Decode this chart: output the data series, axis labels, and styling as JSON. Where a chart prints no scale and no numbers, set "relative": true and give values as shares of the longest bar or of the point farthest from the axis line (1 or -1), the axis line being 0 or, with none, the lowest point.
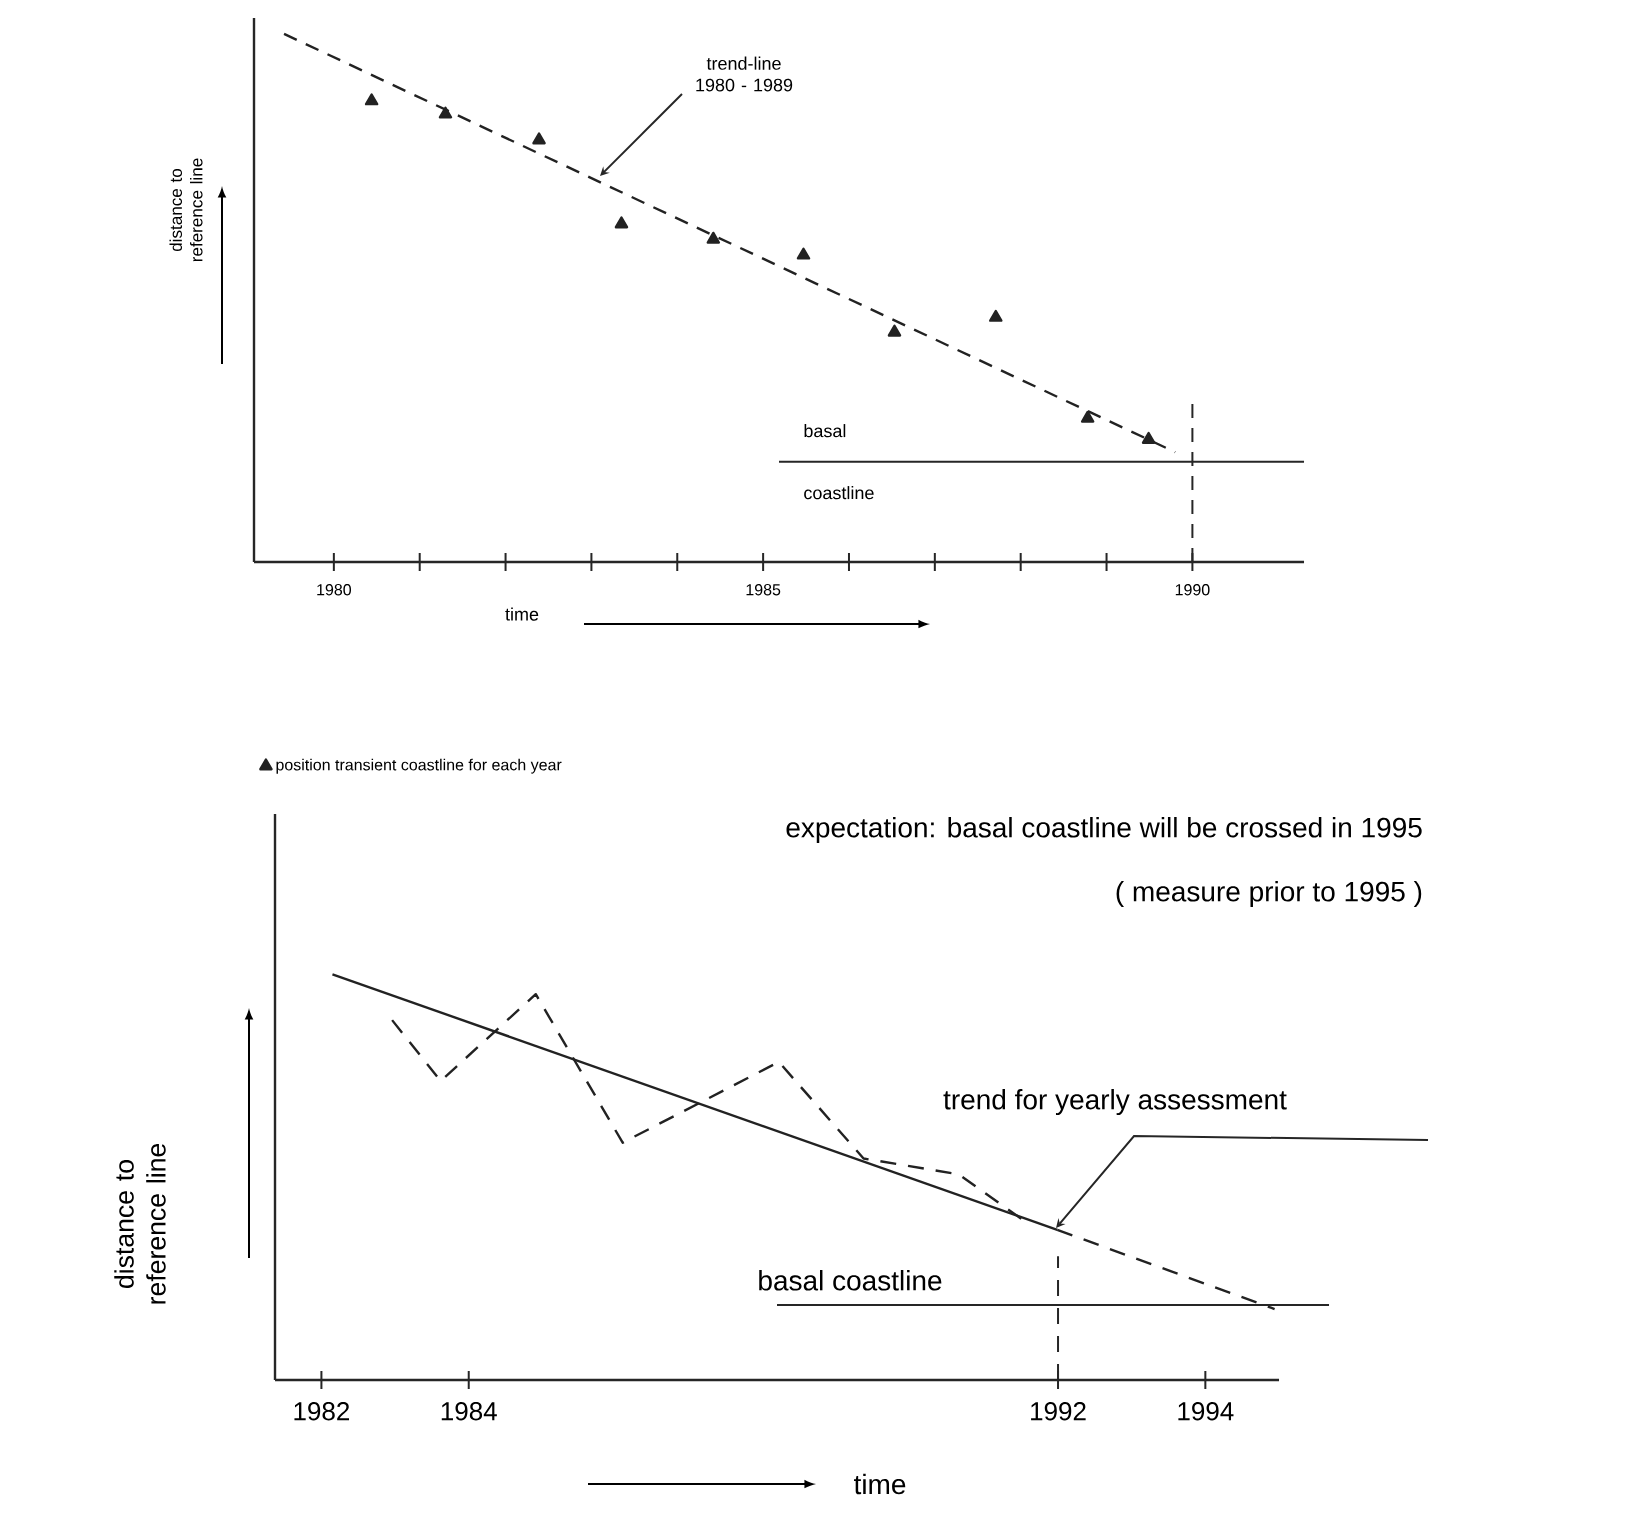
{
  "chart_data": [
    {
      "type": "scatter",
      "relative": true,
      "xlabel": "time",
      "ylabel": "distance to reference line",
      "legend": "bottom left",
      "xlim": [
        1979.07,
        1991.3
      ],
      "xticks": [
        1980,
        {
          "value": 1981,
          "label": null
        },
        {
          "value": 1982,
          "label": null
        },
        {
          "value": 1983,
          "label": null
        },
        {
          "value": 1984,
          "label": null
        },
        1985,
        {
          "value": 1986,
          "label": null
        },
        {
          "value": 1987,
          "label": null
        },
        {
          "value": 1988,
          "label": null
        },
        {
          "value": 1989,
          "label": null
        },
        1990
      ],
      "series": [
        {
          "name": "position transient coastline for each year",
          "color": "#222222",
          "marker": "triangle",
          "x": [
            1980.44,
            1981.3,
            1982.39,
            1983.35,
            1984.42,
            1985.47,
            1986.53,
            1987.71,
            1988.78,
            1989.49
          ],
          "values": [
            0.873,
            0.848,
            0.799,
            0.64,
            0.611,
            0.581,
            0.435,
            0.463,
            0.272,
            0.232
          ]
        },
        {
          "type": "line",
          "color": "#222222",
          "line_style": "dashed",
          "x": [
            1979.42,
            1989.8
          ],
          "values": [
            1,
            0.208
          ]
        }
      ],
      "ref_lines": [
        {
          "axis": "y",
          "value": 0.19,
          "label": "basal coastline"
        },
        {
          "axis": "x",
          "value": 1990,
          "line_style": "dashed"
        }
      ],
      "annotations": [
        "trend-line 1980 - 1989"
      ]
    },
    {
      "type": "line",
      "relative": true,
      "xlabel": "time",
      "ylabel": "distance to reference line",
      "xlim": [
        1981.37,
        1995.0
      ],
      "xticks": [
        1982,
        1984,
        1992,
        1994
      ],
      "series": [
        {
          "color": "#222222",
          "line_style": "dashed",
          "x": [
            1982.96,
            1983.62,
            1984.91,
            1986.09,
            1988.21,
            1989.36,
            1990.65,
            1991.56
          ],
          "values": [
            0.887,
            0.737,
            0.951,
            0.585,
            0.784,
            0.546,
            0.507,
            0.39
          ]
        },
        {
          "color": "#222222",
          "line_style": "solid",
          "x": [
            1982.15,
            1991.99
          ],
          "values": [
            1,
            0.37
          ]
        },
        {
          "color": "#222222",
          "line_style": "dashed",
          "x": [
            1991.99,
            1994.94
          ],
          "values": [
            0.37,
            0.175
          ]
        }
      ],
      "ref_lines": [
        {
          "axis": "y",
          "value": 0.185,
          "label": "basal coastline"
        },
        {
          "axis": "x",
          "value": 1992,
          "line_style": "dashed"
        }
      ],
      "annotations": [
        "expectation: basal coastline will be crossed in 1995",
        "( measure prior to 1995 )",
        "trend for yearly assessment"
      ]
    }
  ]
}
